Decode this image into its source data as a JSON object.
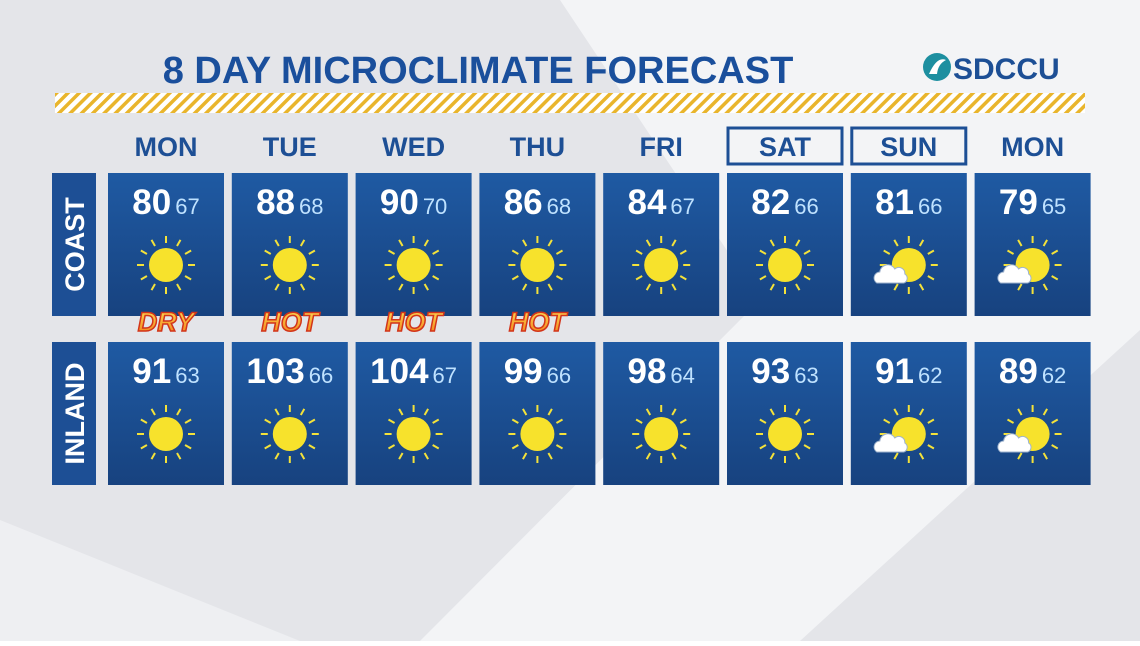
{
  "header": {
    "title": "8 DAY MICROCLIMATE FORECAST",
    "logo": "SDCCU"
  },
  "days": [
    {
      "name": "MON",
      "outlined": false
    },
    {
      "name": "TUE",
      "outlined": false
    },
    {
      "name": "WED",
      "outlined": false
    },
    {
      "name": "THU",
      "outlined": false
    },
    {
      "name": "FRI",
      "outlined": false
    },
    {
      "name": "SAT",
      "outlined": true
    },
    {
      "name": "SUN",
      "outlined": true
    },
    {
      "name": "MON",
      "outlined": false
    }
  ],
  "rows": [
    {
      "label": "COAST",
      "cells": [
        {
          "high": 80,
          "low": 67,
          "icon": "sun",
          "badge": "DRY"
        },
        {
          "high": 88,
          "low": 68,
          "icon": "sun",
          "badge": "HOT"
        },
        {
          "high": 90,
          "low": 70,
          "icon": "sun",
          "badge": "HOT"
        },
        {
          "high": 86,
          "low": 68,
          "icon": "sun",
          "badge": "HOT"
        },
        {
          "high": 84,
          "low": 67,
          "icon": "sun"
        },
        {
          "high": 82,
          "low": 66,
          "icon": "sun"
        },
        {
          "high": 81,
          "low": 66,
          "icon": "sun-cloud"
        },
        {
          "high": 79,
          "low": 65,
          "icon": "sun-cloud"
        }
      ]
    },
    {
      "label": "INLAND",
      "cells": [
        {
          "high": 91,
          "low": 63,
          "icon": "sun"
        },
        {
          "high": 103,
          "low": 66,
          "icon": "sun"
        },
        {
          "high": 104,
          "low": 67,
          "icon": "sun"
        },
        {
          "high": 99,
          "low": 66,
          "icon": "sun"
        },
        {
          "high": 98,
          "low": 64,
          "icon": "sun"
        },
        {
          "high": 93,
          "low": 63,
          "icon": "sun"
        },
        {
          "high": 91,
          "low": 62,
          "icon": "sun-cloud"
        },
        {
          "high": 89,
          "low": 62,
          "icon": "sun-cloud"
        }
      ]
    }
  ]
}
